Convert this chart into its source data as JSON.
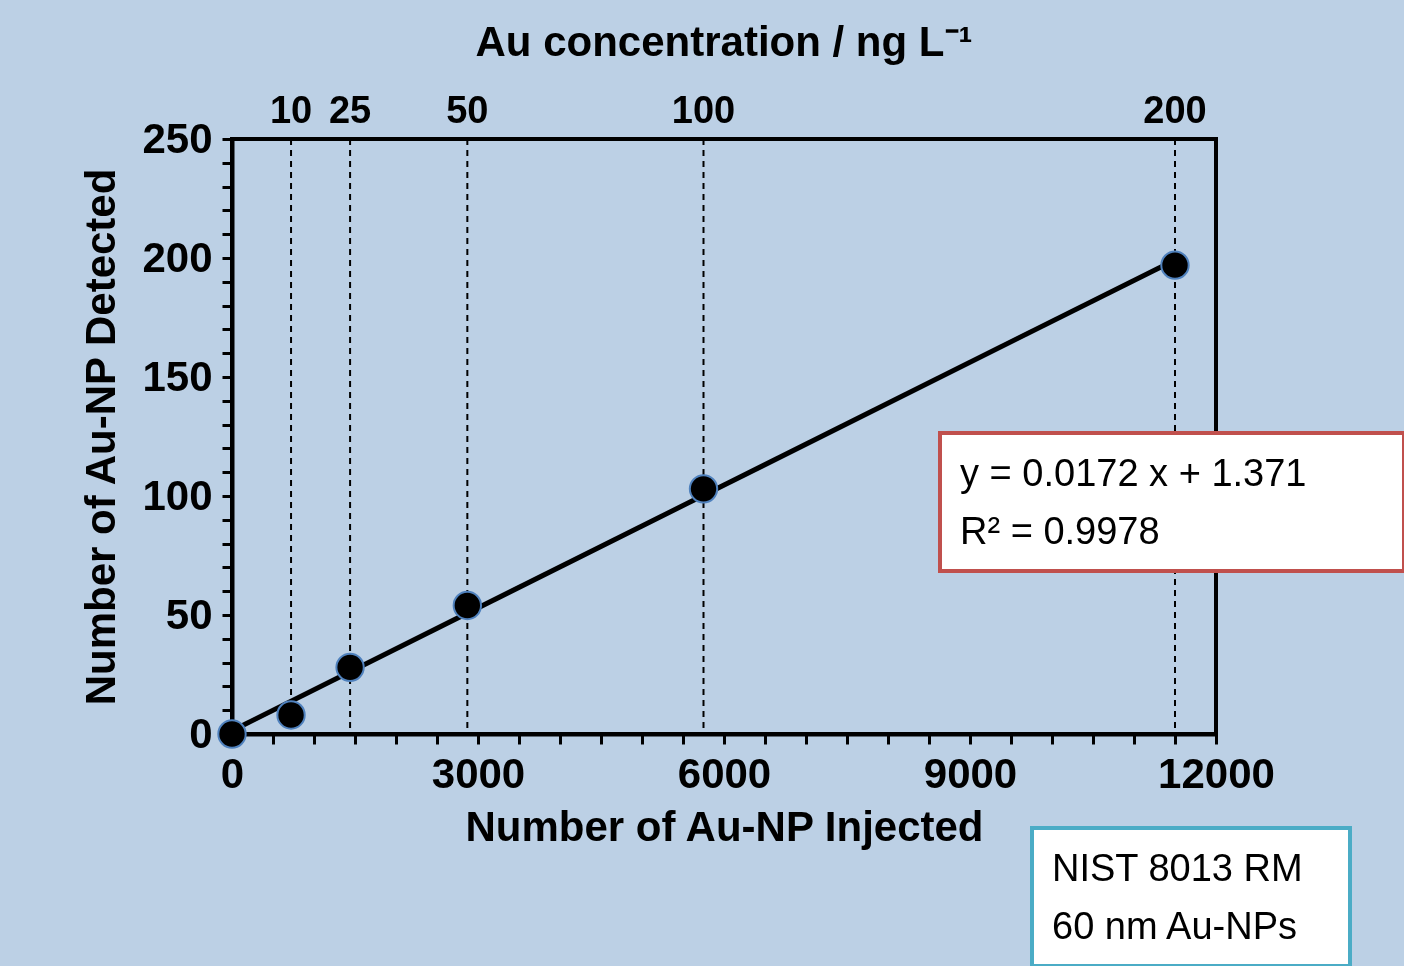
{
  "chart_data": {
    "type": "scatter",
    "title": "Au concentration  / ng L⁻¹",
    "xlabel": "Number of Au-NP Injected",
    "ylabel": "Number of Au-NP Detected",
    "x": [
      0,
      720,
      1440,
      2870,
      5750,
      11500
    ],
    "series": [
      {
        "type": "line",
        "x": [
          0,
          11500
        ],
        "values": [
          1.4,
          199.2
        ],
        "color": "#000000",
        "marker": "none",
        "line_style": "solid"
      },
      {
        "values": [
          0,
          8,
          28,
          54,
          103,
          197
        ],
        "color": "#000000",
        "marker": "circle"
      }
    ],
    "xlim": [
      0,
      12000
    ],
    "xticks": [
      0,
      {
        "value": 500,
        "label": null
      },
      {
        "value": 1000,
        "label": null
      },
      {
        "value": 1500,
        "label": null
      },
      {
        "value": 2000,
        "label": null
      },
      {
        "value": 2500,
        "label": null
      },
      3000,
      {
        "value": 3500,
        "label": null
      },
      {
        "value": 4000,
        "label": null
      },
      {
        "value": 4500,
        "label": null
      },
      {
        "value": 5000,
        "label": null
      },
      {
        "value": 5500,
        "label": null
      },
      6000,
      {
        "value": 6500,
        "label": null
      },
      {
        "value": 7000,
        "label": null
      },
      {
        "value": 7500,
        "label": null
      },
      {
        "value": 8000,
        "label": null
      },
      {
        "value": 8500,
        "label": null
      },
      9000,
      {
        "value": 9500,
        "label": null
      },
      {
        "value": 10000,
        "label": null
      },
      {
        "value": 10500,
        "label": null
      },
      {
        "value": 11000,
        "label": null
      },
      {
        "value": 11500,
        "label": null
      },
      12000
    ],
    "ylim": [
      0,
      250
    ],
    "yticks": [
      0,
      {
        "value": 10,
        "label": null
      },
      {
        "value": 20,
        "label": null
      },
      {
        "value": 30,
        "label": null
      },
      {
        "value": 40,
        "label": null
      },
      50,
      {
        "value": 60,
        "label": null
      },
      {
        "value": 70,
        "label": null
      },
      {
        "value": 80,
        "label": null
      },
      {
        "value": 90,
        "label": null
      },
      100,
      {
        "value": 110,
        "label": null
      },
      {
        "value": 120,
        "label": null
      },
      {
        "value": 130,
        "label": null
      },
      {
        "value": 140,
        "label": null
      },
      150,
      {
        "value": 160,
        "label": null
      },
      {
        "value": 170,
        "label": null
      },
      {
        "value": 180,
        "label": null
      },
      {
        "value": 190,
        "label": null
      },
      200,
      {
        "value": 210,
        "label": null
      },
      {
        "value": 220,
        "label": null
      },
      {
        "value": 230,
        "label": null
      },
      {
        "value": 240,
        "label": null
      },
      250
    ],
    "ref_lines": [
      {
        "axis": "x",
        "value": 720,
        "line_style": "dashed",
        "color": "#000000"
      },
      {
        "axis": "x",
        "value": 1440,
        "line_style": "dashed",
        "color": "#000000"
      },
      {
        "axis": "x",
        "value": 2870,
        "line_style": "dashed",
        "color": "#000000"
      },
      {
        "axis": "x",
        "value": 5750,
        "line_style": "dashed",
        "color": "#000000"
      },
      {
        "axis": "x",
        "value": 11500,
        "line_style": "dashed",
        "color": "#000000"
      }
    ],
    "annotations": [
      "y = 0.0172 x + 1.371",
      "R² = 0.9978",
      "NIST 8013 RM",
      "60 nm Au-NPs",
      {
        "text": "10",
        "x": 720,
        "y": 250
      },
      {
        "text": "25",
        "x": 1440,
        "y": 250
      },
      {
        "text": "50",
        "x": 2870,
        "y": 250
      },
      {
        "text": "100",
        "x": 5750,
        "y": 250
      },
      {
        "text": "200",
        "x": 11500,
        "y": 250
      }
    ],
    "grid": false
  }
}
